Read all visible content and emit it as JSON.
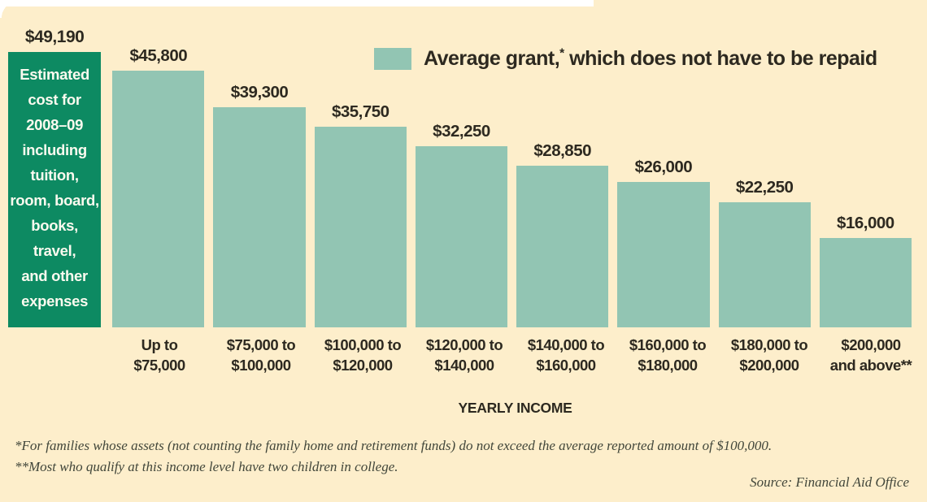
{
  "legend": {
    "prefix": "Average grant,",
    "asterisk": "*",
    "suffix": " which does not have to be repaid"
  },
  "cost_box": {
    "value_label": "$49,190",
    "description": "Estimated\ncost for\n2008–09\nincluding\ntuition,\nroom, board,\nbooks,\ntravel,\nand other\nexpenses"
  },
  "chart_data": {
    "type": "bar",
    "title": "Average grant, which does not have to be repaid",
    "xlabel": "YEARLY INCOME",
    "ylabel": "",
    "categories": [
      "Up to\n$75,000",
      "$75,000 to\n$100,000",
      "$100,000 to\n$120,000",
      "$120,000 to\n$140,000",
      "$140,000 to\n$160,000",
      "$160,000 to\n$180,000",
      "$180,000 to\n$200,000",
      "$200,000\nand above**"
    ],
    "values": [
      45800,
      39300,
      35750,
      32250,
      28850,
      26000,
      22250,
      16000
    ],
    "value_labels": [
      "$45,800",
      "$39,300",
      "$35,750",
      "$32,250",
      "$28,850",
      "$26,000",
      "$22,250",
      "$16,000"
    ],
    "reference_value": 49190,
    "reference_label": "$49,190",
    "ylim": [
      0,
      49190
    ],
    "grid": false,
    "legend_position": "top-center",
    "bar_color": "#92c5b3",
    "reference_box_color": "#0d8a62",
    "background_color": "#fdeecb",
    "text_color": "#2d2920"
  },
  "footnotes": {
    "line1": "*For families whose assets (not counting the family home and retirement funds) do not exceed the average reported amount of $100,000.",
    "line2": "**Most who qualify at this income level have two children in college."
  },
  "source": "Source: Financial Aid Office"
}
